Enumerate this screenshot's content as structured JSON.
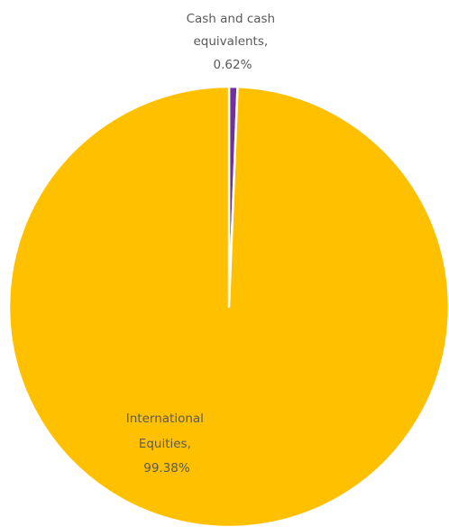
{
  "chart_data": {
    "type": "pie",
    "title": "",
    "slices": [
      {
        "name": "Cash and cash equivalents",
        "value": 0.62,
        "color": "#7030A0",
        "label_lines": [
          "Cash and cash",
          "equivalents,",
          "0.62%"
        ]
      },
      {
        "name": "International Equities",
        "value": 99.38,
        "color": "#FFC000",
        "label_lines": [
          "International",
          "Equities,",
          "99.38%"
        ]
      }
    ],
    "start": "12 o'clock",
    "direction": "clockwise",
    "separator_color": "#ffffff",
    "legend": "none"
  }
}
